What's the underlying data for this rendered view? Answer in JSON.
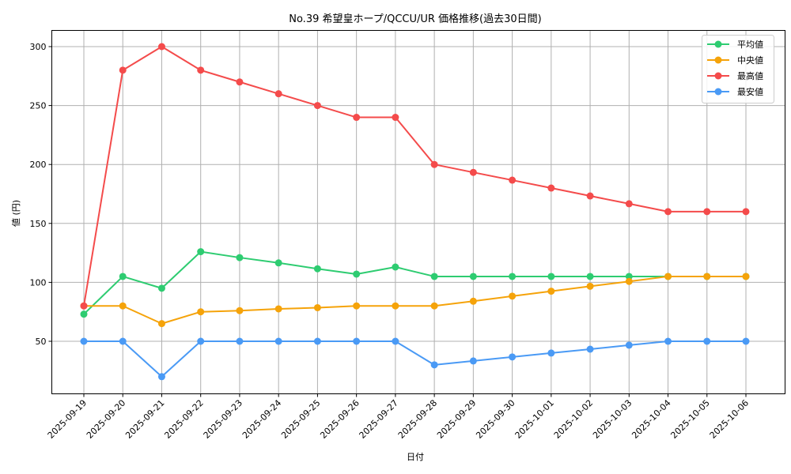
{
  "chart_data": {
    "type": "line",
    "title": "No.39 希望皇ホープ/QCCU/UR 価格推移(過去30日間)",
    "xlabel": "日付",
    "ylabel": "値 (円)",
    "ylim": [
      9,
      314
    ],
    "yticks": [
      50,
      100,
      150,
      200,
      250,
      300
    ],
    "grid": true,
    "legend_position": "upper right",
    "categories": [
      "2025-09-19",
      "2025-09-20",
      "2025-09-21",
      "2025-09-22",
      "2025-09-23",
      "2025-09-24",
      "2025-09-25",
      "2025-09-26",
      "2025-09-27",
      "2025-09-28",
      "2025-09-29",
      "2025-09-30",
      "2025-10-01",
      "2025-10-02",
      "2025-10-03",
      "2025-10-04",
      "2025-10-05",
      "2025-10-06"
    ],
    "series": [
      {
        "name": "平均値",
        "color": "#2ecc71",
        "values": [
          73,
          105,
          95,
          126,
          121,
          116.5,
          111.5,
          107,
          113,
          105,
          105,
          105,
          105,
          105,
          105,
          105,
          105,
          105
        ]
      },
      {
        "name": "中央値",
        "color": "#f5a30a",
        "values": [
          80,
          80,
          65,
          75,
          76,
          77.5,
          78.5,
          80,
          80,
          80,
          84,
          88.3,
          92.5,
          96.7,
          100.8,
          105,
          105,
          105
        ]
      },
      {
        "name": "最高値",
        "color": "#f44b4b",
        "values": [
          80,
          280,
          300,
          280,
          270,
          260,
          250,
          240,
          240,
          200,
          193.3,
          186.7,
          180,
          173.3,
          166.7,
          160,
          160,
          160
        ]
      },
      {
        "name": "最安値",
        "color": "#4a9af5",
        "values": [
          50,
          50,
          20,
          50,
          50,
          50,
          50,
          50,
          50,
          30,
          33.3,
          36.7,
          40,
          43.3,
          46.7,
          50,
          50,
          50
        ]
      }
    ]
  }
}
